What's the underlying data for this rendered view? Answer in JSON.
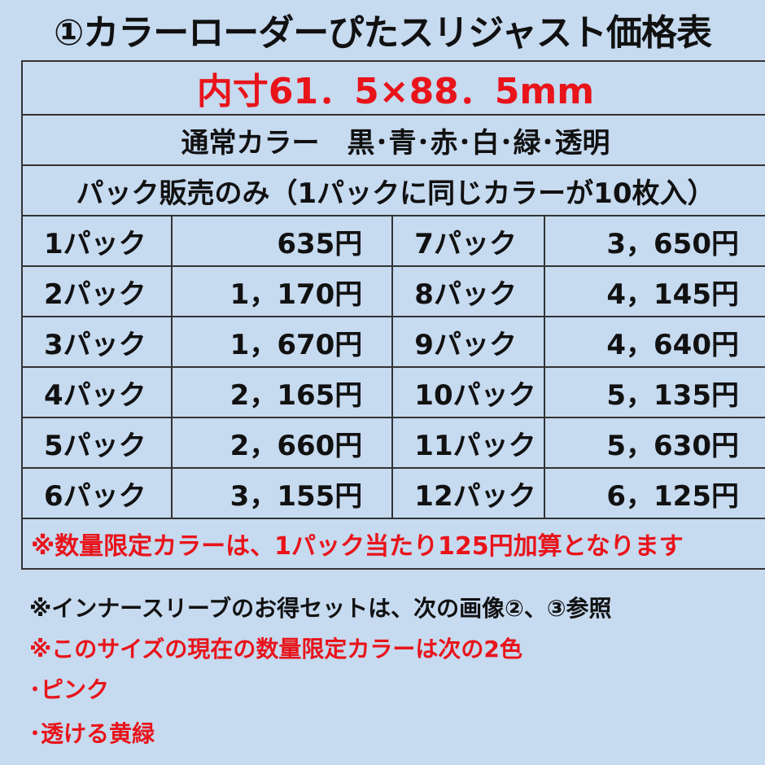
{
  "title": "①カラーローダーぴたスリジャスト価格表",
  "size": "内寸61．5×88．5mm",
  "colors": "通常カラー　黒･青･赤･白･緑･透明",
  "pack_info": "パック販売のみ（1パックに同じカラーが10枚入）",
  "rows": [
    {
      "l1": "1パック",
      "p1": "635円",
      "l2": "7パック",
      "p2": "3，650円"
    },
    {
      "l1": "2パック",
      "p1": "1，170円",
      "l2": "8パック",
      "p2": "4，145円"
    },
    {
      "l1": "3パック",
      "p1": "1，670円",
      "l2": "9パック",
      "p2": "4，640円"
    },
    {
      "l1": "4パック",
      "p1": "2，165円",
      "l2": "10パック",
      "p2": "5，135円"
    },
    {
      "l1": "5パック",
      "p1": "2，660円",
      "l2": "11パック",
      "p2": "5，630円"
    },
    {
      "l1": "6パック",
      "p1": "3，155円",
      "l2": "12パック",
      "p2": "6，125円"
    }
  ],
  "limited_note": "※数量限定カラーは、1パック当たり125円加算となります",
  "notes": [
    "※インナースリーブのお得セットは、次の画像②、③参照",
    "※このサイズの現在の数量限定カラーは次の2色",
    "･ピンク",
    "･透ける黄緑"
  ],
  "colors_hex": {
    "background": "#c6daf0",
    "accent": "#e8141a"
  }
}
